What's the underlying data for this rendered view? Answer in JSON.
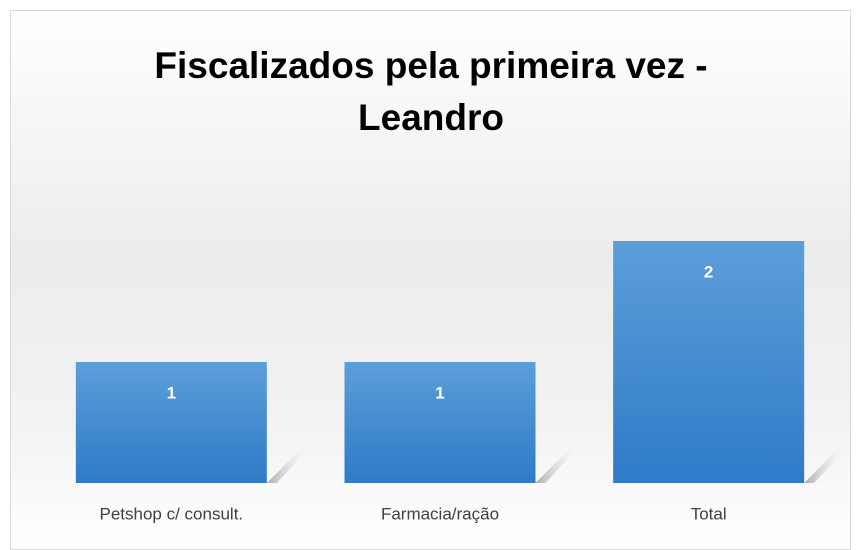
{
  "chart_data": {
    "type": "bar",
    "title": "Fiscalizados pela primeira vez - Leandro",
    "categories": [
      "Petshop c/ consult.",
      "Farmacia/ração",
      "Total"
    ],
    "values": [
      1,
      1,
      2
    ],
    "color": "#4a8fd6",
    "data_labels": true
  }
}
